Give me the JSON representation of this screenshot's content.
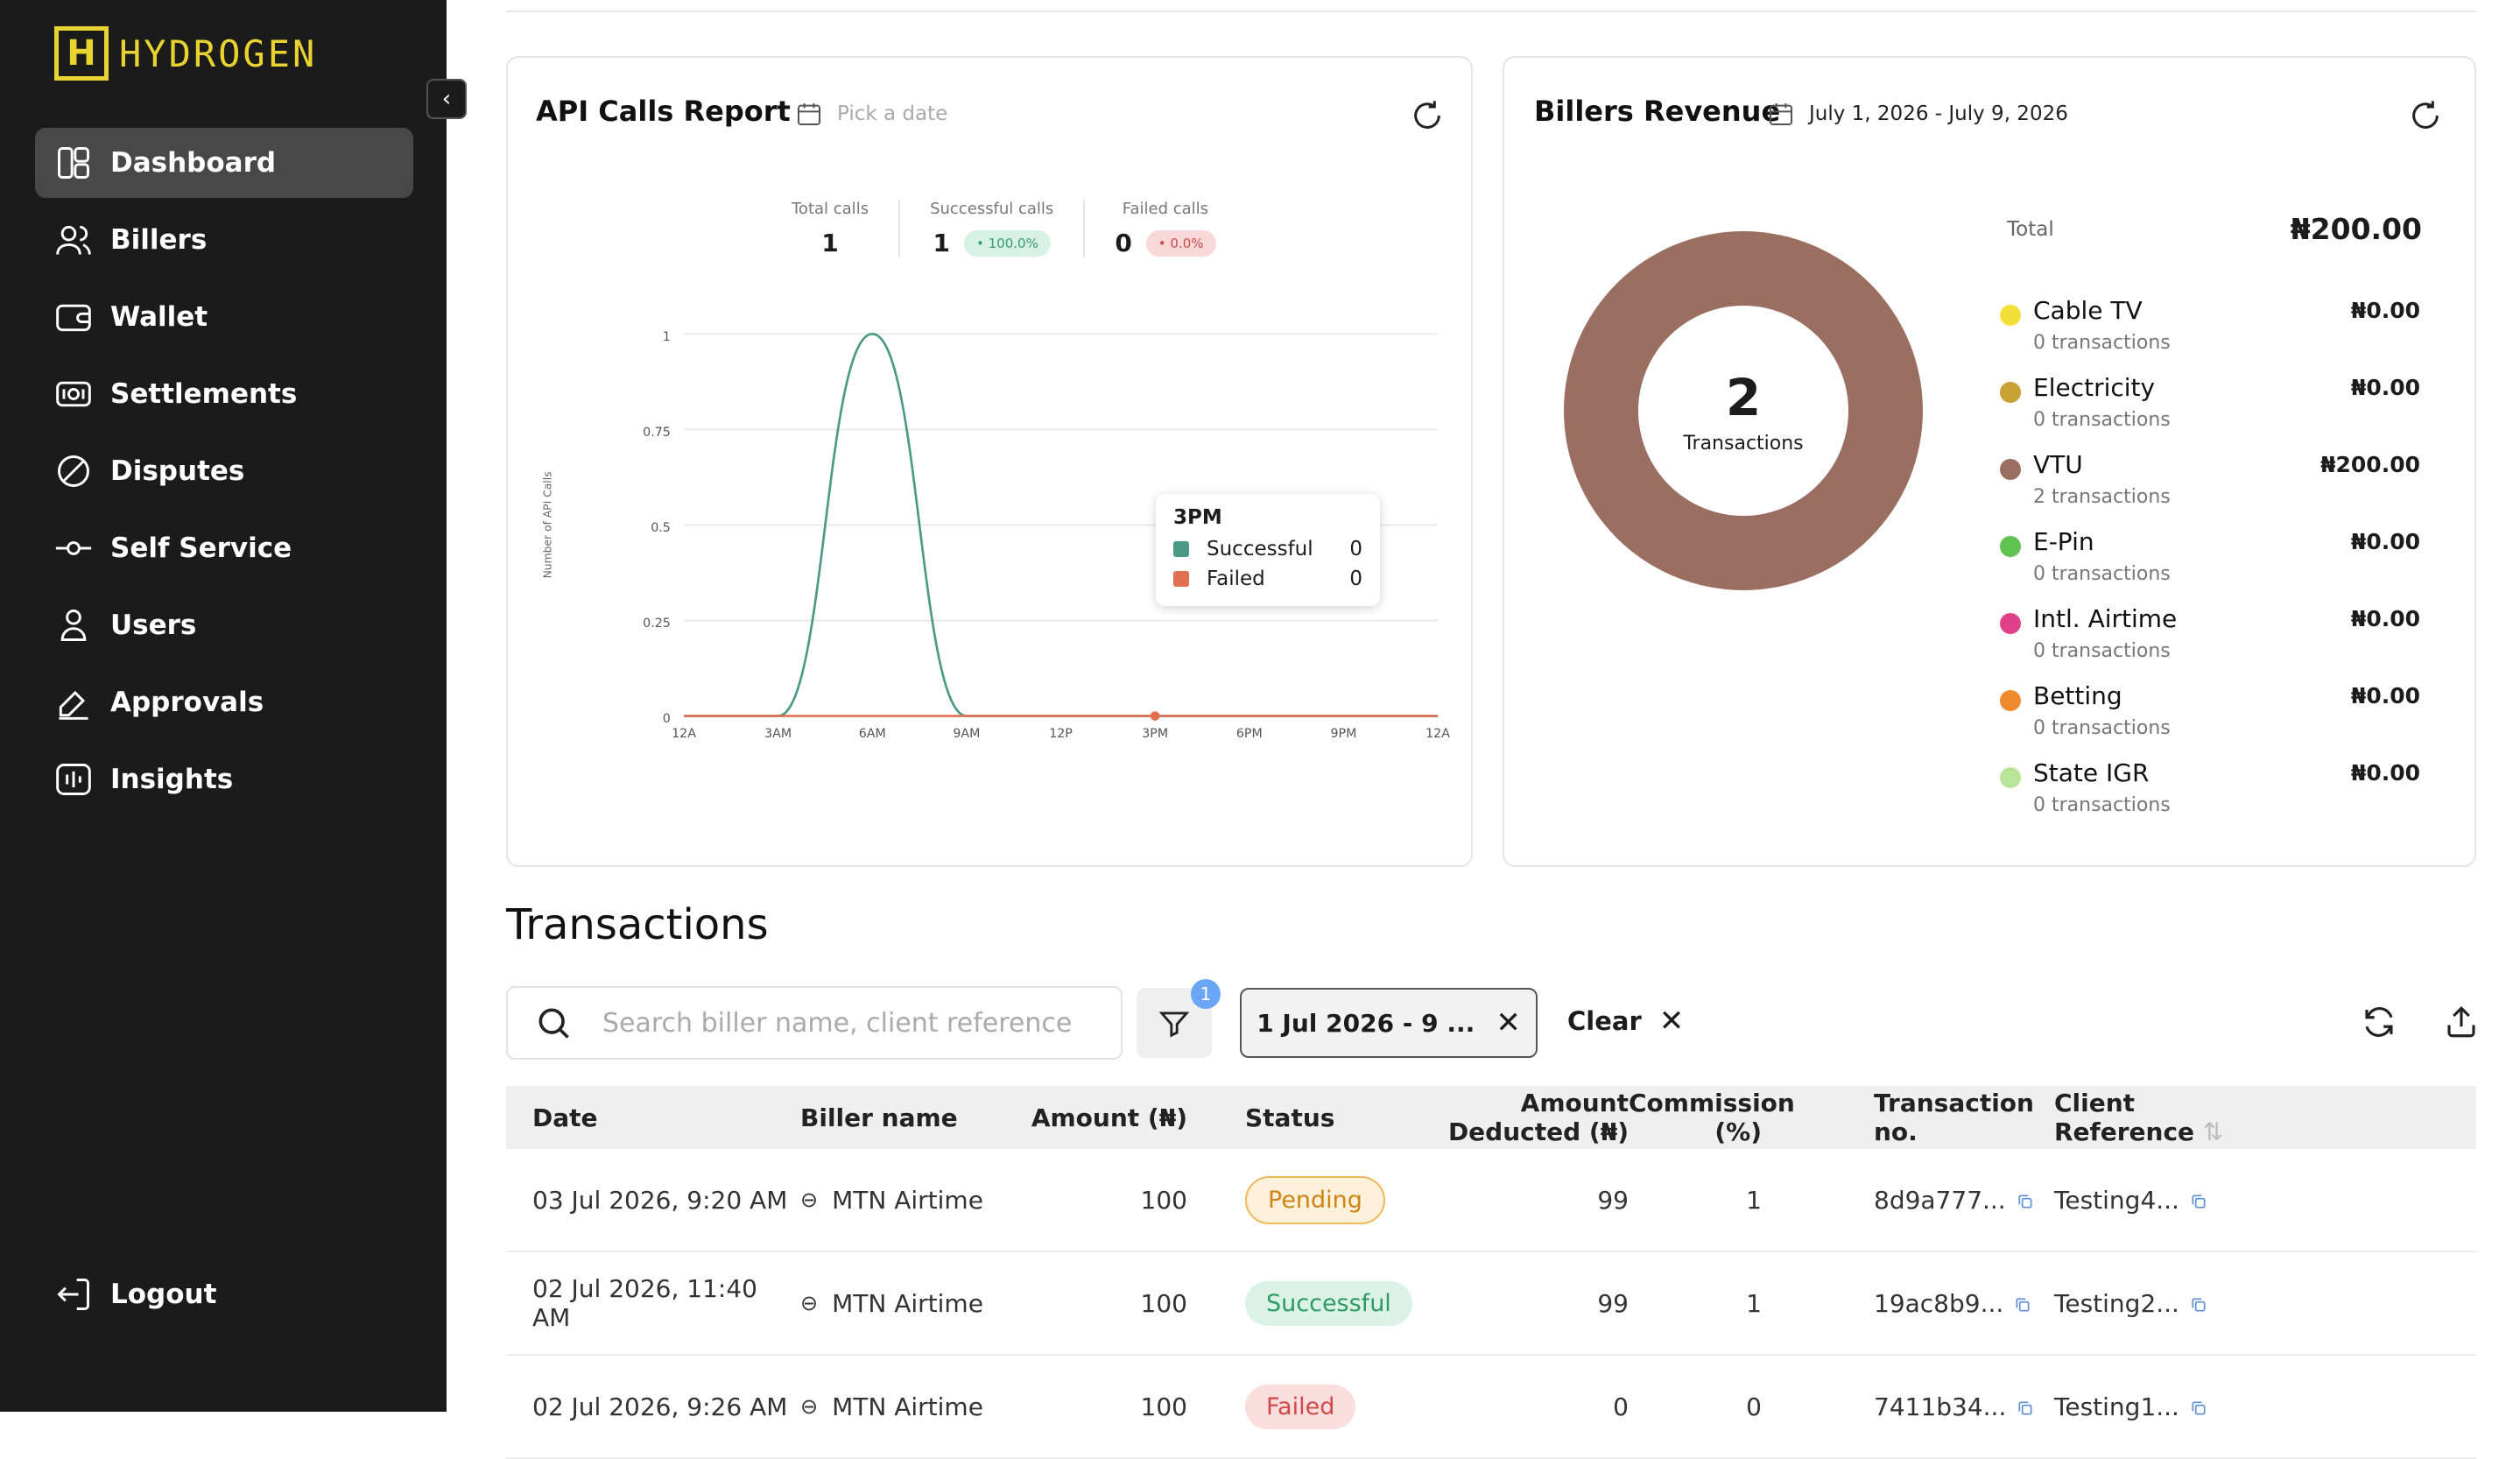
{
  "brand": {
    "name": "HYDROGEN",
    "mark": "H"
  },
  "sidebar": {
    "items": [
      {
        "label": "Dashboard",
        "icon": "dashboard-icon",
        "active": true
      },
      {
        "label": "Billers",
        "icon": "billers-icon"
      },
      {
        "label": "Wallet",
        "icon": "wallet-icon"
      },
      {
        "label": "Settlements",
        "icon": "settlements-icon"
      },
      {
        "label": "Disputes",
        "icon": "disputes-icon"
      },
      {
        "label": "Self Service",
        "icon": "self-service-icon"
      },
      {
        "label": "Users",
        "icon": "users-icon"
      },
      {
        "label": "Approvals",
        "icon": "approvals-icon"
      },
      {
        "label": "Insights",
        "icon": "insights-icon"
      }
    ],
    "logout": "Logout"
  },
  "api_report": {
    "title": "API Calls Report",
    "date_placeholder": "Pick a date",
    "stats": {
      "total_label": "Total calls",
      "total": "1",
      "success_label": "Successful calls",
      "success": "1",
      "success_pct": "100.0%",
      "failed_label": "Failed calls",
      "failed": "0",
      "failed_pct": "0.0%"
    },
    "tooltip": {
      "title": "3PM",
      "success_label": "Successful",
      "success_val": "0",
      "failed_label": "Failed",
      "failed_val": "0"
    }
  },
  "chart_data": {
    "type": "line",
    "x": [
      "12A",
      "3AM",
      "6AM",
      "9AM",
      "12P",
      "3PM",
      "6PM",
      "9PM",
      "12A"
    ],
    "ylabel": "Number of API Calls",
    "yticks": [
      "0",
      "0.25",
      "0.5",
      "0.75",
      "1"
    ],
    "ylim": [
      0,
      1
    ],
    "series": [
      {
        "name": "Successful",
        "color": "#4a9a85",
        "values": [
          0,
          0,
          1,
          0,
          0,
          0,
          0,
          0,
          0
        ]
      },
      {
        "name": "Failed",
        "color": "#e07050",
        "values": [
          0,
          0,
          0,
          0,
          0,
          0,
          0,
          0,
          0
        ]
      }
    ],
    "grid": true
  },
  "billers": {
    "title": "Billers Revenue",
    "date_range": "July 1, 2026 - July 9, 2026",
    "total_label": "Total",
    "total": "₦200.00",
    "donut_value": "2",
    "donut_label": "Transactions",
    "donut_color": "#9a6f62",
    "items": [
      {
        "name": "Cable TV",
        "count": "0 transactions",
        "amount": "₦0.00",
        "color": "#f2df3a"
      },
      {
        "name": "Electricity",
        "count": "0 transactions",
        "amount": "₦0.00",
        "color": "#c7a131"
      },
      {
        "name": "VTU",
        "count": "2 transactions",
        "amount": "₦200.00",
        "color": "#9a6f62"
      },
      {
        "name": "E-Pin",
        "count": "0 transactions",
        "amount": "₦0.00",
        "color": "#5fc44f"
      },
      {
        "name": "Intl. Airtime",
        "count": "0 transactions",
        "amount": "₦0.00",
        "color": "#e0408a"
      },
      {
        "name": "Betting",
        "count": "0 transactions",
        "amount": "₦0.00",
        "color": "#f08a2e"
      },
      {
        "name": "State IGR",
        "count": "0 transactions",
        "amount": "₦0.00",
        "color": "#b9e59a"
      }
    ]
  },
  "transactions": {
    "title": "Transactions",
    "search_placeholder": "Search biller name, client reference",
    "filter_count": "1",
    "date_chip": "1 Jul 2026 - 9 ...",
    "clear_label": "Clear",
    "columns": [
      "Date",
      "Biller name",
      "Amount (₦)",
      "Status",
      "Amount Deducted (₦)",
      "Commission (%)",
      "Transaction no.",
      "Client Reference"
    ],
    "rows": [
      {
        "date": "03 Jul 2026, 9:20 AM",
        "biller": "MTN Airtime",
        "amount": "100",
        "status": "Pending",
        "deducted": "99",
        "commission": "1",
        "txn": "8d9a777...",
        "ref": "Testing4..."
      },
      {
        "date": "02 Jul 2026, 11:40 AM",
        "biller": "MTN Airtime",
        "amount": "100",
        "status": "Successful",
        "deducted": "99",
        "commission": "1",
        "txn": "19ac8b9...",
        "ref": "Testing2..."
      },
      {
        "date": "02 Jul 2026, 9:26 AM",
        "biller": "MTN Airtime",
        "amount": "100",
        "status": "Failed",
        "deducted": "0",
        "commission": "0",
        "txn": "7411b34...",
        "ref": "Testing1..."
      }
    ]
  }
}
